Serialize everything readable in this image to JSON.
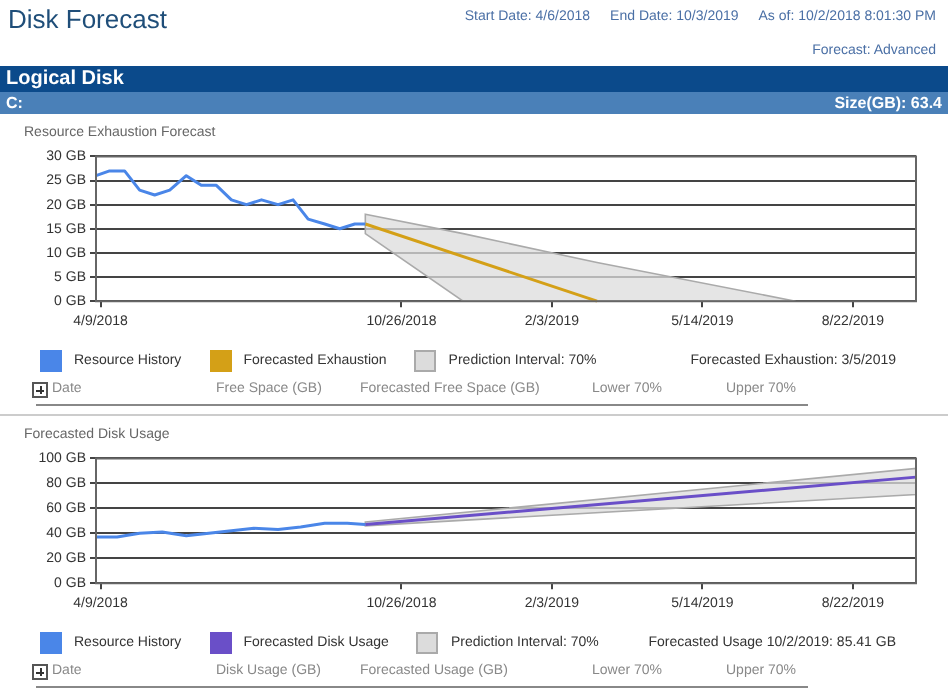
{
  "chart_data": [
    {
      "type": "other",
      "title": "Disk Forecast",
      "annotations": [
        "Start Date: 4/6/2018",
        "End Date: 10/3/2019",
        "As of: 10/2/2018 8:01:30 PM",
        "Forecast: Advanced",
        "Logical Disk",
        "C:",
        "Size(GB): 63.4"
      ]
    },
    {
      "type": "line",
      "title": "Resource Exhaustion Forecast",
      "grid": "y",
      "legend": "bottom",
      "xlim": [
        "2018-04-06",
        "2019-10-03"
      ],
      "xticks": [
        {
          "value": "2018-04-09",
          "label": "4/9/2018"
        },
        {
          "value": "2018-10-26",
          "label": "10/26/2018"
        },
        {
          "value": "2019-02-03",
          "label": "2/3/2019"
        },
        {
          "value": "2019-05-14",
          "label": "5/14/2019"
        },
        {
          "value": "2019-08-22",
          "label": "8/22/2019"
        }
      ],
      "ylim": [
        0,
        30
      ],
      "yticks": [
        {
          "value": 0,
          "label": "0 GB"
        },
        {
          "value": 5,
          "label": "5 GB"
        },
        {
          "value": 10,
          "label": "10 GB"
        },
        {
          "value": 15,
          "label": "15 GB"
        },
        {
          "value": 20,
          "label": "20 GB"
        },
        {
          "value": 25,
          "label": "25 GB"
        },
        {
          "value": 30,
          "label": "30 GB"
        }
      ],
      "series": [
        {
          "name": "Resource History",
          "color": "#4a86e8",
          "x": [
            "2018-04-06",
            "2018-04-15",
            "2018-04-25",
            "2018-05-05",
            "2018-05-15",
            "2018-05-25",
            "2018-06-05",
            "2018-06-15",
            "2018-06-25",
            "2018-07-05",
            "2018-07-15",
            "2018-07-25",
            "2018-08-05",
            "2018-08-15",
            "2018-08-25",
            "2018-09-05",
            "2018-09-15",
            "2018-09-25",
            "2018-10-02"
          ],
          "values": [
            26,
            27,
            27,
            23,
            22,
            23,
            26,
            24,
            24,
            21,
            20,
            21,
            20,
            21,
            17,
            16,
            15,
            16,
            16
          ]
        },
        {
          "name": "Forecasted Exhaustion",
          "color": "#d4a017",
          "x": [
            "2018-10-02",
            "2019-03-05"
          ],
          "values": [
            16,
            0
          ]
        },
        {
          "name": "Prediction Interval: 70%",
          "color": "#dcdcdc",
          "x": [
            "2018-10-02",
            "2018-12-06",
            "2019-03-05",
            "2019-07-15"
          ],
          "values": [
            null,
            null,
            null,
            null
          ],
          "lower": [
            14,
            0,
            0,
            0
          ],
          "upper": [
            18,
            14,
            8,
            0
          ]
        }
      ],
      "annotations": [
        "Forecasted Exhaustion: 3/5/2019",
        "Date",
        "Free Space (GB)",
        "Forecasted Free Space (GB)",
        "Lower 70%",
        "Upper 70%"
      ]
    },
    {
      "type": "line",
      "title": "Forecasted Disk Usage",
      "grid": "y",
      "legend": "bottom",
      "xlim": [
        "2018-04-06",
        "2019-10-03"
      ],
      "xticks": [
        {
          "value": "2018-04-09",
          "label": "4/9/2018"
        },
        {
          "value": "2018-10-26",
          "label": "10/26/2018"
        },
        {
          "value": "2019-02-03",
          "label": "2/3/2019"
        },
        {
          "value": "2019-05-14",
          "label": "5/14/2019"
        },
        {
          "value": "2019-08-22",
          "label": "8/22/2019"
        }
      ],
      "ylim": [
        0,
        100
      ],
      "yticks": [
        {
          "value": 0,
          "label": "0 GB"
        },
        {
          "value": 20,
          "label": "20 GB"
        },
        {
          "value": 40,
          "label": "40 GB"
        },
        {
          "value": 60,
          "label": "60 GB"
        },
        {
          "value": 80,
          "label": "80 GB"
        },
        {
          "value": 100,
          "label": "100 GB"
        }
      ],
      "series": [
        {
          "name": "Resource History",
          "color": "#4a86e8",
          "x": [
            "2018-04-06",
            "2018-04-20",
            "2018-05-05",
            "2018-05-20",
            "2018-06-05",
            "2018-06-20",
            "2018-07-05",
            "2018-07-20",
            "2018-08-05",
            "2018-08-20",
            "2018-09-05",
            "2018-09-20",
            "2018-10-02"
          ],
          "values": [
            37,
            37,
            40,
            41,
            38,
            40,
            42,
            44,
            43,
            45,
            48,
            48,
            47
          ]
        },
        {
          "name": "Forecasted Disk Usage",
          "color": "#6a4fc8",
          "x": [
            "2018-10-02",
            "2019-10-03"
          ],
          "values": [
            47,
            85
          ]
        },
        {
          "name": "Prediction Interval: 70%",
          "color": "#dcdcdc",
          "x": [
            "2018-10-02",
            "2019-10-03"
          ],
          "values": [
            null,
            null
          ],
          "lower": [
            46,
            71
          ],
          "upper": [
            49,
            92
          ]
        }
      ],
      "annotations": [
        "Forecasted Usage 10/2/2019: 85.41 GB",
        "Date",
        "Disk Usage (GB)",
        "Forecasted Usage (GB)",
        "Lower 70%",
        "Upper 70%"
      ]
    }
  ]
}
